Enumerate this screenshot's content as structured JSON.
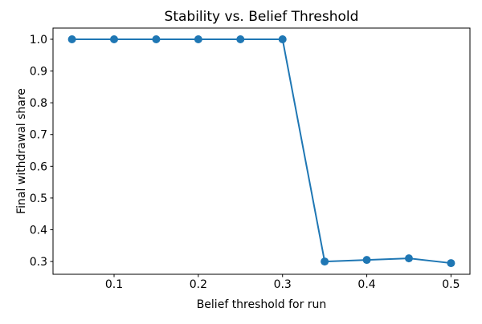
{
  "chart_data": {
    "type": "line",
    "title": "Stability vs. Belief Threshold",
    "xlabel": "Belief threshold for run",
    "ylabel": "Final withdrawal share",
    "x": [
      0.05,
      0.1,
      0.15,
      0.2,
      0.25,
      0.3,
      0.35,
      0.4,
      0.45,
      0.5
    ],
    "y": [
      1.0,
      1.0,
      1.0,
      1.0,
      1.0,
      1.0,
      0.3,
      0.305,
      0.31,
      0.295
    ],
    "xticks": [
      0.1,
      0.2,
      0.3,
      0.4,
      0.5
    ],
    "yticks": [
      0.3,
      0.4,
      0.5,
      0.6,
      0.7,
      0.8,
      0.9,
      1.0
    ],
    "xlim": [
      0.0275,
      0.5225
    ],
    "ylim": [
      0.2598,
      1.0353
    ],
    "grid": false,
    "legend_position": "none",
    "line_color": "#1f77b4",
    "marker": "circle",
    "spine_color": "#000000"
  }
}
